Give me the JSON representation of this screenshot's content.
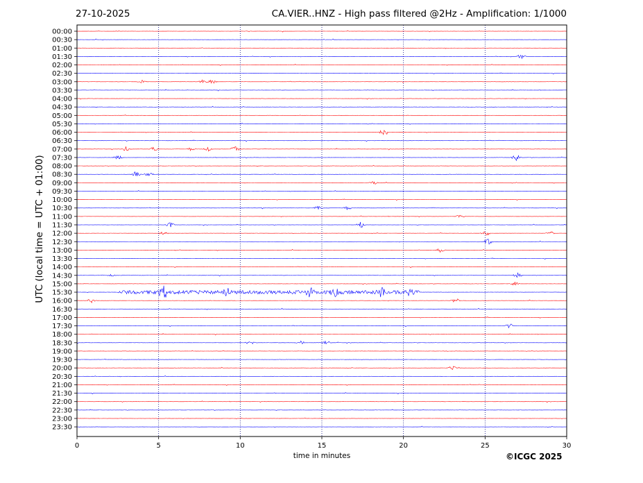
{
  "header": {
    "date": "27-10-2025",
    "title": "CA.VIER..HNZ - High pass filtered @2Hz - Amplification: 1/1000"
  },
  "footer": {
    "copyright": "©ICGC 2025"
  },
  "chart_data": {
    "type": "line",
    "title": "CA.VIER..HNZ - High pass filtered @2Hz - Amplification: 1/1000",
    "xlabel": "time in minutes",
    "ylabel": "UTC (local time = UTC + 01:00)",
    "xlim": [
      0,
      30
    ],
    "x_ticks": [
      0,
      5,
      10,
      15,
      20,
      25,
      30
    ],
    "y_ticks": [
      "00:00",
      "00:30",
      "01:00",
      "01:30",
      "02:00",
      "02:30",
      "03:00",
      "03:30",
      "04:00",
      "04:30",
      "05:00",
      "05:30",
      "06:00",
      "06:30",
      "07:00",
      "07:30",
      "08:00",
      "08:30",
      "09:00",
      "09:30",
      "10:00",
      "10:30",
      "11:00",
      "11:30",
      "12:00",
      "12:30",
      "13:00",
      "13:30",
      "14:00",
      "14:30",
      "15:00",
      "15:30",
      "16:00",
      "16:30",
      "17:00",
      "17:30",
      "18:00",
      "18:30",
      "19:00",
      "19:30",
      "20:00",
      "20:30",
      "21:00",
      "21:30",
      "22:00",
      "22:30",
      "23:00",
      "23:30"
    ],
    "grid": "dotted vertical lines at x ticks",
    "trace_colors": [
      "#ff0000",
      "#0000ff"
    ],
    "events": [
      {
        "trace": "01:30",
        "t": 27.2,
        "amp": 0.3
      },
      {
        "trace": "03:00",
        "t": 4.0,
        "amp": 0.2
      },
      {
        "trace": "03:00",
        "t": 7.7,
        "amp": 0.25
      },
      {
        "trace": "03:00",
        "t": 8.3,
        "amp": 0.3
      },
      {
        "trace": "06:00",
        "t": 18.8,
        "amp": 0.5
      },
      {
        "trace": "07:00",
        "t": 3.0,
        "amp": 0.3
      },
      {
        "trace": "07:00",
        "t": 4.7,
        "amp": 0.3
      },
      {
        "trace": "07:00",
        "t": 7.0,
        "amp": 0.25
      },
      {
        "trace": "07:00",
        "t": 8.0,
        "amp": 0.3
      },
      {
        "trace": "07:00",
        "t": 9.7,
        "amp": 0.45
      },
      {
        "trace": "07:30",
        "t": 2.5,
        "amp": 0.3
      },
      {
        "trace": "07:30",
        "t": 26.9,
        "amp": 0.45
      },
      {
        "trace": "08:30",
        "t": 3.6,
        "amp": 0.35
      },
      {
        "trace": "08:30",
        "t": 4.4,
        "amp": 0.3
      },
      {
        "trace": "09:00",
        "t": 18.2,
        "amp": 0.25
      },
      {
        "trace": "10:30",
        "t": 14.8,
        "amp": 0.3
      },
      {
        "trace": "10:30",
        "t": 16.6,
        "amp": 0.3
      },
      {
        "trace": "11:00",
        "t": 23.5,
        "amp": 0.3
      },
      {
        "trace": "11:30",
        "t": 5.7,
        "amp": 0.3
      },
      {
        "trace": "11:30",
        "t": 17.4,
        "amp": 0.4
      },
      {
        "trace": "12:00",
        "t": 5.3,
        "amp": 0.25
      },
      {
        "trace": "12:00",
        "t": 25.0,
        "amp": 0.5
      },
      {
        "trace": "12:00",
        "t": 29.0,
        "amp": 0.3
      },
      {
        "trace": "12:30",
        "t": 25.2,
        "amp": 0.4
      },
      {
        "trace": "13:00",
        "t": 22.3,
        "amp": 0.35
      },
      {
        "trace": "14:30",
        "t": 2.1,
        "amp": 0.2
      },
      {
        "trace": "14:30",
        "t": 27.0,
        "amp": 0.3
      },
      {
        "trace": "15:00",
        "t": 26.8,
        "amp": 0.25
      },
      {
        "trace": "15:30",
        "t": 5.3,
        "amp": 0.9
      },
      {
        "trace": "15:30",
        "t": 9.2,
        "amp": 0.6
      },
      {
        "trace": "15:30",
        "t": 14.3,
        "amp": 0.6
      },
      {
        "trace": "15:30",
        "t": 15.8,
        "amp": 0.6
      },
      {
        "trace": "15:30",
        "t": 18.6,
        "amp": 0.6
      },
      {
        "trace": "15:30",
        "t": 20.5,
        "amp": 0.55
      },
      {
        "trace": "16:00",
        "t": 0.9,
        "amp": 0.3
      },
      {
        "trace": "16:00",
        "t": 23.2,
        "amp": 0.3
      },
      {
        "trace": "17:30",
        "t": 26.5,
        "amp": 0.3
      },
      {
        "trace": "18:30",
        "t": 10.6,
        "amp": 0.35
      },
      {
        "trace": "18:30",
        "t": 13.7,
        "amp": 0.25
      },
      {
        "trace": "18:30",
        "t": 15.3,
        "amp": 0.25
      },
      {
        "trace": "20:00",
        "t": 23.0,
        "amp": 0.3
      }
    ]
  }
}
